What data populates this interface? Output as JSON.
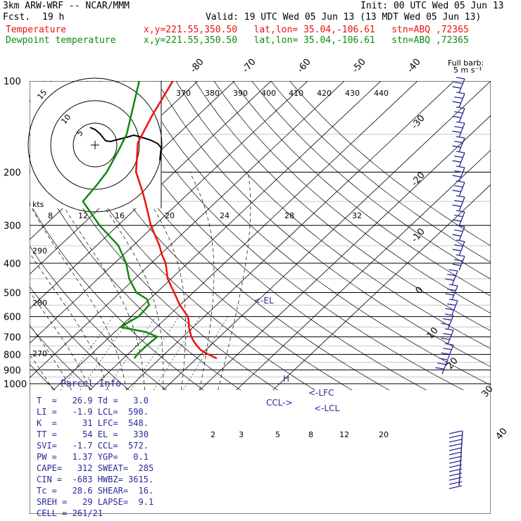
{
  "header": {
    "model": "3km ARW-WRF -- NCAR/MMM",
    "fcst_label": "Fcst.",
    "fcst_value": "19 h",
    "init": "Init: 00 UTC Wed 05 Jun 13",
    "valid": "Valid: 19 UTC Wed 05 Jun 13 (13 MDT Wed 05 Jun 13)",
    "temperature_label": "Temperature",
    "temperature_info": "x,y=221.55,350.50   lat,lon= 35.04,-106.61   stn=ABQ ,72365",
    "dewpoint_label": "Dewpoint temperature",
    "dewpoint_info": "x,y=221.55,350.50   lat,lon= 35.04,-106.61   stn=ABQ ,72365"
  },
  "colors": {
    "temperature": "#ee1111",
    "dewpoint": "#118811",
    "annotation": "#2a2a9a",
    "dry_adiabat": "#000000"
  },
  "chart_data": {
    "type": "skew-t log-p",
    "y_axis_ticks": [
      100,
      200,
      300,
      400,
      500,
      600,
      700,
      800,
      900,
      1000
    ],
    "isotherm_labels_top": [
      "-80",
      "-70",
      "-60",
      "-50",
      "-40"
    ],
    "isotherm_labels_right": [
      "-30",
      "-20",
      "-10",
      "0",
      "10",
      "20",
      "30",
      "40"
    ],
    "theta_labels_top": [
      "370",
      "380",
      "390",
      "400",
      "410",
      "420",
      "430",
      "440"
    ],
    "theta_labels_left": [
      "290",
      "280",
      "270"
    ],
    "mixing_ratio_labels_upper": [
      "8",
      "12",
      "16",
      "20",
      "24",
      "28",
      "32"
    ],
    "mixing_ratio_labels_lower": [
      "2",
      "3",
      "5",
      "8",
      "12",
      "20"
    ],
    "wind_barb_title": "Full barb:",
    "wind_barb_subtitle": "5 m s⁻¹",
    "hodograph": {
      "unit_label": "kts",
      "ring_labels": [
        "5",
        "10",
        "15"
      ]
    },
    "markers": [
      "<-EL",
      "CCL->",
      "<-LFC",
      "<-LCL"
    ],
    "series": [
      {
        "name": "Temperature",
        "points": [
          [
            825,
            25.5
          ],
          [
            800,
            22.0
          ],
          [
            775,
            18.8
          ],
          [
            750,
            16.5
          ],
          [
            725,
            14.3
          ],
          [
            700,
            12.3
          ],
          [
            650,
            8.8
          ],
          [
            625,
            7.3
          ],
          [
            600,
            5.5
          ],
          [
            575,
            2.8
          ],
          [
            550,
            0.0
          ],
          [
            500,
            -5.2
          ],
          [
            450,
            -11.0
          ],
          [
            400,
            -16.0
          ],
          [
            375,
            -19.5
          ],
          [
            350,
            -22.8
          ],
          [
            300,
            -31.0
          ],
          [
            250,
            -39.5
          ],
          [
            230,
            -43.5
          ],
          [
            200,
            -50.5
          ],
          [
            160,
            -58.5
          ],
          [
            130,
            -62.5
          ],
          [
            100,
            -66.8
          ]
        ]
      },
      {
        "name": "Dewpoint temperature",
        "points": [
          [
            825,
            3.0
          ],
          [
            800,
            2.6
          ],
          [
            775,
            2.6
          ],
          [
            750,
            2.6
          ],
          [
            725,
            2.8
          ],
          [
            700,
            3.0
          ],
          [
            675,
            -1.5
          ],
          [
            650,
            -9.8
          ],
          [
            625,
            -9.0
          ],
          [
            600,
            -8.0
          ],
          [
            550,
            -8.4
          ],
          [
            525,
            -10.8
          ],
          [
            500,
            -15.5
          ],
          [
            450,
            -21.5
          ],
          [
            400,
            -26.8
          ],
          [
            350,
            -34.0
          ],
          [
            300,
            -45.0
          ],
          [
            250,
            -56.5
          ],
          [
            220,
            -57.5
          ],
          [
            200,
            -58.5
          ],
          [
            170,
            -61.5
          ],
          [
            150,
            -64.0
          ],
          [
            100,
            -76.0
          ]
        ]
      }
    ]
  },
  "parcel_info": {
    "title": "Parcel Info",
    "rows": [
      "T  =   26.9 Td =   3.0",
      "LI =   -1.9 LCL=  590.",
      "K  =     31 LFC=  548.",
      "TT =     54 EL =   330",
      "SVI=   -1.7 CCL=  572.",
      "PW =   1.37 YGP=   0.1",
      "CAPE=   312 SWEAT=  285",
      "CIN =  -683 HWBZ= 3615.",
      "Tc =   28.6 SHEAR=  16.",
      "SREH =   29 LAPSE=  9.1",
      "CELL = 261/21"
    ]
  }
}
